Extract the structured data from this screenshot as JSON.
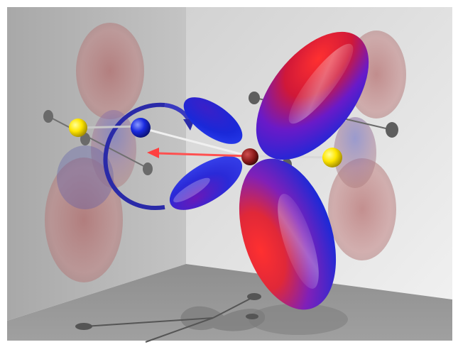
{
  "scene": {
    "subject": "orbital-lobes-3d-render",
    "lobe_colors": {
      "positive": "#e01010",
      "negative": "#1020d0",
      "highlight": "#ffffff"
    },
    "atom_colors": {
      "center_atom": "#8a1a1a",
      "yellow_atom": "#ffe600",
      "blue_atom": "#1a2ae0"
    },
    "arrow_colors": {
      "red_arrow": "#ff5050",
      "rotation_arrow": "#2a2aa8"
    },
    "wall_colors": {
      "left_wall": "#b4b4b4",
      "back_wall": "#e0e0e0",
      "floor": "#8c8c8c"
    }
  }
}
